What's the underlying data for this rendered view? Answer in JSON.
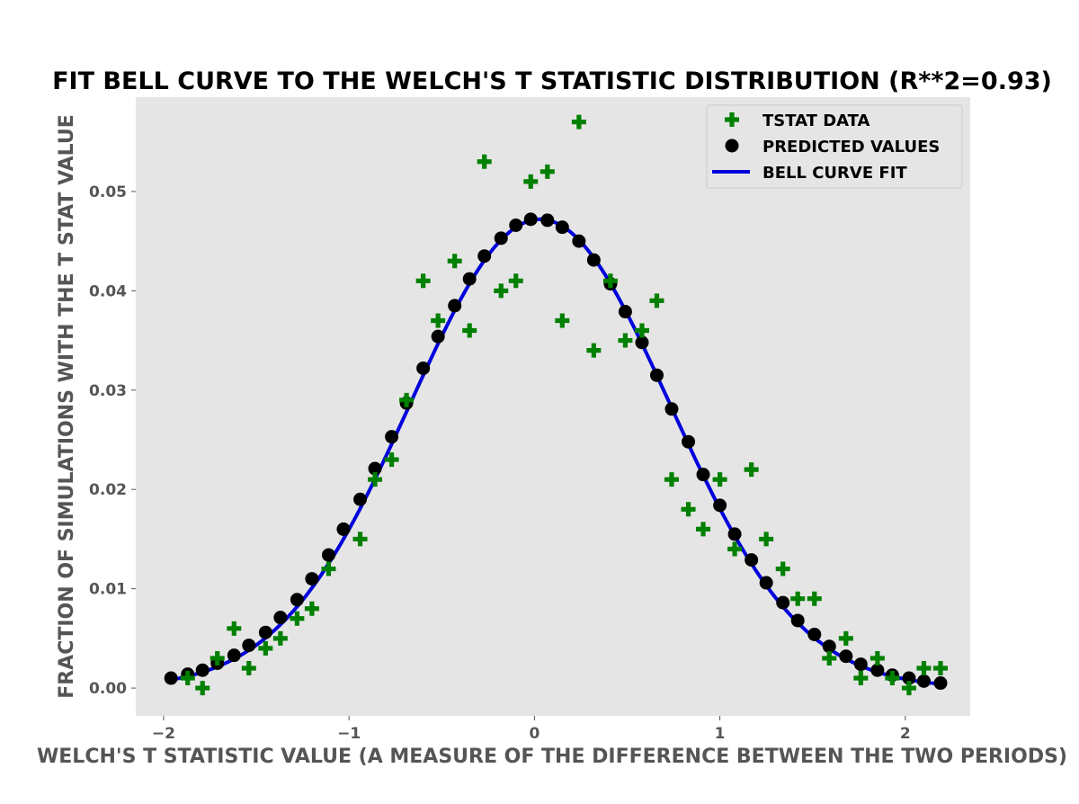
{
  "chart_data": {
    "type": "scatter",
    "title": "FIT BELL CURVE TO THE WELCH'S T STATISTIC DISTRIBUTION (R**2=0.93)",
    "xlabel": "WELCH'S T STATISTIC VALUE (A MEASURE OF THE DIFFERENCE BETWEEN THE TWO PERIODS)",
    "ylabel": "FRACTION OF SIMULATIONS WITH THE T STAT VALUE",
    "xlim": [
      -2.15,
      2.35
    ],
    "ylim": [
      -0.0028,
      0.0595
    ],
    "x_ticks": [
      -2,
      -1,
      0,
      1,
      2
    ],
    "x_tick_labels": [
      "−2",
      "−1",
      "0",
      "1",
      "2"
    ],
    "y_ticks": [
      0.0,
      0.01,
      0.02,
      0.03,
      0.04,
      0.05
    ],
    "y_tick_labels": [
      "0.00",
      "0.01",
      "0.02",
      "0.03",
      "0.04",
      "0.05"
    ],
    "grid": false,
    "background": "#e5e5e5",
    "legend_position": "top-right",
    "legend": [
      {
        "label": "TSTAT DATA",
        "marker": "plus",
        "color": "#008000"
      },
      {
        "label": "PREDICTED VALUES",
        "marker": "circle",
        "color": "#000000"
      },
      {
        "label": "BELL CURVE FIT",
        "marker": "line",
        "color": "#0000dd"
      }
    ],
    "series": [
      {
        "name": "TSTAT DATA",
        "kind": "scatter",
        "marker": "plus",
        "color": "#008000",
        "points": [
          [
            -1.87,
            0.001
          ],
          [
            -1.79,
            0.0
          ],
          [
            -1.71,
            0.003
          ],
          [
            -1.62,
            0.006
          ],
          [
            -1.54,
            0.002
          ],
          [
            -1.45,
            0.004
          ],
          [
            -1.37,
            0.005
          ],
          [
            -1.28,
            0.007
          ],
          [
            -1.2,
            0.008
          ],
          [
            -1.11,
            0.012
          ],
          [
            -0.94,
            0.015
          ],
          [
            -0.86,
            0.021
          ],
          [
            -0.77,
            0.023
          ],
          [
            -0.69,
            0.029
          ],
          [
            -0.6,
            0.041
          ],
          [
            -0.52,
            0.037
          ],
          [
            -0.43,
            0.043
          ],
          [
            -0.35,
            0.036
          ],
          [
            -0.27,
            0.053
          ],
          [
            -0.18,
            0.04
          ],
          [
            -0.1,
            0.041
          ],
          [
            -0.02,
            0.051
          ],
          [
            0.07,
            0.052
          ],
          [
            0.15,
            0.037
          ],
          [
            0.24,
            0.057
          ],
          [
            0.32,
            0.034
          ],
          [
            0.41,
            0.041
          ],
          [
            0.49,
            0.035
          ],
          [
            0.58,
            0.036
          ],
          [
            0.66,
            0.039
          ],
          [
            0.74,
            0.021
          ],
          [
            0.83,
            0.018
          ],
          [
            0.91,
            0.016
          ],
          [
            1.0,
            0.021
          ],
          [
            1.08,
            0.014
          ],
          [
            1.17,
            0.022
          ],
          [
            1.25,
            0.015
          ],
          [
            1.34,
            0.012
          ],
          [
            1.42,
            0.009
          ],
          [
            1.51,
            0.009
          ],
          [
            1.59,
            0.003
          ],
          [
            1.68,
            0.005
          ],
          [
            1.76,
            0.001
          ],
          [
            1.85,
            0.003
          ],
          [
            1.93,
            0.001
          ],
          [
            2.02,
            0.0
          ],
          [
            2.1,
            0.002
          ],
          [
            2.19,
            0.002
          ]
        ]
      },
      {
        "name": "PREDICTED VALUES",
        "kind": "scatter",
        "marker": "circle",
        "color": "#000000",
        "points": [
          [
            -1.96,
            0.001
          ],
          [
            -1.87,
            0.0014
          ],
          [
            -1.79,
            0.0018
          ],
          [
            -1.71,
            0.0025
          ],
          [
            -1.62,
            0.0033
          ],
          [
            -1.54,
            0.0043
          ],
          [
            -1.45,
            0.0056
          ],
          [
            -1.37,
            0.0071
          ],
          [
            -1.28,
            0.0089
          ],
          [
            -1.2,
            0.011
          ],
          [
            -1.11,
            0.0134
          ],
          [
            -1.03,
            0.016
          ],
          [
            -0.94,
            0.019
          ],
          [
            -0.86,
            0.0221
          ],
          [
            -0.77,
            0.0253
          ],
          [
            -0.69,
            0.0287
          ],
          [
            -0.6,
            0.0322
          ],
          [
            -0.52,
            0.0354
          ],
          [
            -0.43,
            0.0385
          ],
          [
            -0.35,
            0.0412
          ],
          [
            -0.27,
            0.0435
          ],
          [
            -0.18,
            0.0453
          ],
          [
            -0.1,
            0.0466
          ],
          [
            -0.02,
            0.0472
          ],
          [
            0.07,
            0.0471
          ],
          [
            0.15,
            0.0464
          ],
          [
            0.24,
            0.045
          ],
          [
            0.32,
            0.0431
          ],
          [
            0.41,
            0.0407
          ],
          [
            0.49,
            0.0379
          ],
          [
            0.58,
            0.0348
          ],
          [
            0.66,
            0.0315
          ],
          [
            0.74,
            0.0281
          ],
          [
            0.83,
            0.0248
          ],
          [
            0.91,
            0.0215
          ],
          [
            1.0,
            0.0184
          ],
          [
            1.08,
            0.0155
          ],
          [
            1.17,
            0.0129
          ],
          [
            1.25,
            0.0106
          ],
          [
            1.34,
            0.0086
          ],
          [
            1.42,
            0.0068
          ],
          [
            1.51,
            0.0054
          ],
          [
            1.59,
            0.0042
          ],
          [
            1.68,
            0.0032
          ],
          [
            1.76,
            0.0024
          ],
          [
            1.85,
            0.0018
          ],
          [
            1.93,
            0.0013
          ],
          [
            2.02,
            0.001
          ],
          [
            2.1,
            0.0007
          ],
          [
            2.19,
            0.0005
          ]
        ]
      },
      {
        "name": "BELL CURVE FIT",
        "kind": "line",
        "color": "#0000dd",
        "mu": 0.03,
        "sigma": 0.7,
        "amplitude": 0.0472,
        "x_range": [
          -1.96,
          2.19
        ]
      }
    ]
  }
}
